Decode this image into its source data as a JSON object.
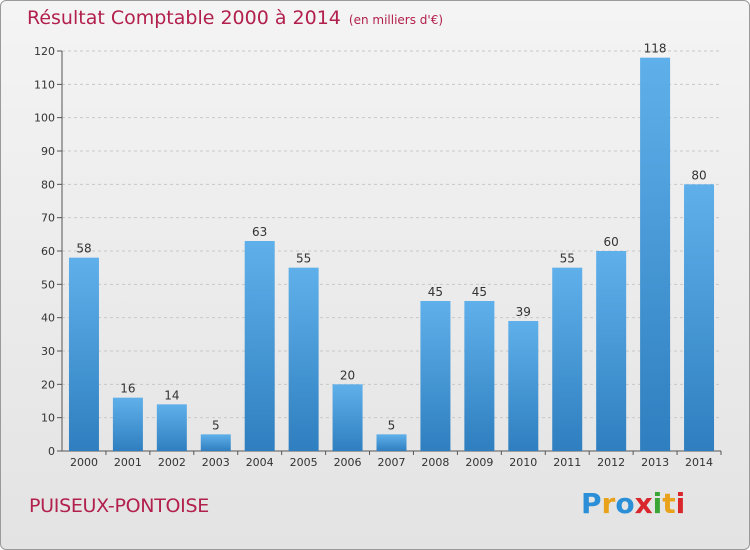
{
  "header": {
    "title": "Résultat Comptable 2000 à 2014",
    "subtitle": "(en milliers d'€)"
  },
  "footer": {
    "city": "PUISEUX-PONTOISE",
    "logo_text": "Proxiti"
  },
  "colors": {
    "title": "#b2204d",
    "bar_top": "#5fb0ea",
    "bar_bottom": "#2f7fc0",
    "logo_letters": [
      "#2a8fd6",
      "#e8a21c",
      "#2a8fd6",
      "#d8262c",
      "#3aa435",
      "#e8a21c",
      "#d8262c"
    ]
  },
  "chart_data": {
    "type": "bar",
    "categories": [
      "2000",
      "2001",
      "2002",
      "2003",
      "2004",
      "2005",
      "2006",
      "2007",
      "2008",
      "2009",
      "2010",
      "2011",
      "2012",
      "2013",
      "2014"
    ],
    "values": [
      58,
      16,
      14,
      5,
      63,
      55,
      20,
      5,
      45,
      45,
      39,
      55,
      60,
      118,
      80
    ],
    "ylim": [
      0,
      120
    ],
    "yticks": [
      0,
      10,
      20,
      30,
      40,
      50,
      60,
      70,
      80,
      90,
      100,
      110,
      120
    ],
    "grid": "horizontal dashed",
    "data_labels": true
  }
}
